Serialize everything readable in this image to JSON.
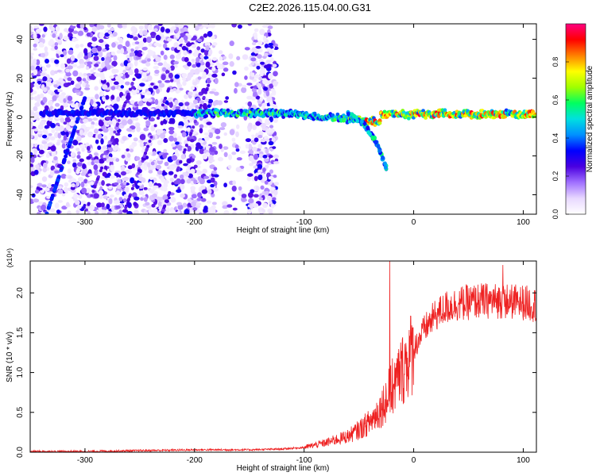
{
  "title": "C2E2.2026.115.04.00.G31",
  "chart_data": [
    {
      "type": "heatmap",
      "name": "spectrogram",
      "xlabel": "Height of straight line (km)",
      "ylabel": "Frequency (Hz)",
      "xlim": [
        -350,
        112
      ],
      "ylim": [
        -50,
        48
      ],
      "xticks": [
        -300,
        -200,
        -100,
        0,
        100
      ],
      "yticks": [
        -40,
        -20,
        0,
        20,
        40
      ],
      "xtick_labels": [
        "-300",
        "-200",
        "-100",
        "0",
        "100"
      ],
      "ytick_labels": [
        "-40",
        "-20",
        "0",
        "20",
        "40"
      ],
      "colorbar": {
        "label": "Normalized spectral amplitude",
        "range": [
          0,
          1
        ],
        "ticks": [
          0.0,
          0.2,
          0.4,
          0.6,
          0.8
        ],
        "tick_labels": [
          "0.0",
          "0.2",
          "0.4",
          "0.6",
          "0.8"
        ],
        "colormap": [
          "#ffffff",
          "#e8d8ff",
          "#a070ff",
          "#4a00e0",
          "#0000ff",
          "#0090ff",
          "#00e0e0",
          "#00ff60",
          "#a0ff00",
          "#ffff00",
          "#ff8000",
          "#ff0000",
          "#ff0080"
        ]
      },
      "features": {
        "noise_region_km": [
          -350,
          -125
        ],
        "carrier_freq_hz": 2,
        "carrier_start_km": -340,
        "drift_branch": {
          "x": [
            -60,
            -45,
            -35,
            -25
          ],
          "y": [
            2,
            -4,
            -12,
            -26
          ]
        },
        "rising_streak": {
          "x": [
            -335,
            -300
          ],
          "y": [
            -50,
            10
          ]
        }
      }
    },
    {
      "type": "line",
      "name": "snr",
      "xlabel": "Height of straight line (km)",
      "ylabel": "SNR (10 * v/v)",
      "scale_label": "(x10⁴)",
      "xlim": [
        -350,
        112
      ],
      "ylim": [
        0,
        2.4
      ],
      "xticks": [
        -300,
        -200,
        -100,
        0,
        100
      ],
      "yticks": [
        0.0,
        0.5,
        1.0,
        1.5,
        2.0
      ],
      "xtick_labels": [
        "-300",
        "-200",
        "-100",
        "0",
        "100"
      ],
      "ytick_labels": [
        "0.0",
        "0.5",
        "1.0",
        "1.5",
        "2.0"
      ],
      "color": "#ee2020",
      "series": [
        {
          "name": "SNR",
          "x": [
            -350,
            -300,
            -250,
            -200,
            -150,
            -120,
            -100,
            -80,
            -60,
            -50,
            -40,
            -30,
            -20,
            -10,
            0,
            10,
            20,
            30,
            40,
            60,
            80,
            100,
            112
          ],
          "y": [
            0.01,
            0.01,
            0.02,
            0.03,
            0.03,
            0.04,
            0.06,
            0.12,
            0.2,
            0.28,
            0.38,
            0.55,
            0.8,
            1.05,
            1.3,
            1.55,
            1.72,
            1.82,
            1.86,
            1.9,
            1.9,
            1.88,
            1.85
          ]
        }
      ]
    }
  ]
}
